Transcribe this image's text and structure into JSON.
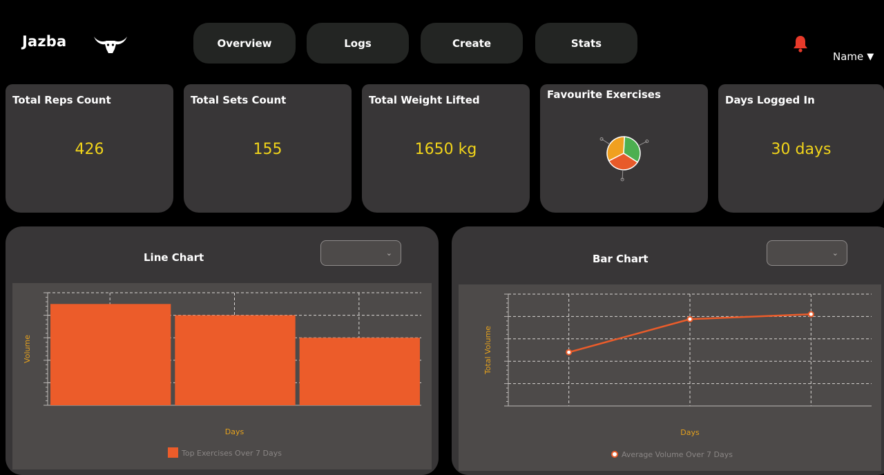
{
  "header": {
    "brand": "Jazba",
    "nav": [
      "Overview",
      "Logs",
      "Create",
      "Stats"
    ],
    "user_name": "Name",
    "user_caret": "▼"
  },
  "icons": {
    "logo": "bull-skull-icon",
    "notifications": "bell-icon",
    "select_chevron": "chevron-down-icon"
  },
  "colors": {
    "accent_value": "#f2d51a",
    "bar_orange": "#ec5c2a",
    "bell_red": "#e83a2a",
    "axis_label": "#e6a21d"
  },
  "cards": [
    {
      "title": "Total Reps Count",
      "value": "426"
    },
    {
      "title": "Total Sets Count",
      "value": "155"
    },
    {
      "title": "Total Weight Lifted",
      "value": "1650 kg"
    },
    {
      "title": "Favourite Exercises",
      "value": ""
    },
    {
      "title": "Days Logged In",
      "value": "30 days"
    }
  ],
  "panels": {
    "left": {
      "title": "Line Chart",
      "select_value": "",
      "chevron": "⌄"
    },
    "right": {
      "title": "Bar Chart",
      "select_value": "",
      "chevron": "⌄"
    }
  },
  "chart_data": [
    {
      "type": "pie",
      "title": "Favourite Exercises",
      "categories": [
        "",
        "",
        ""
      ],
      "values": [
        1,
        1,
        1
      ],
      "colors": [
        "#4caf50",
        "#e85a2a",
        "#f0a020"
      ]
    },
    {
      "type": "bar",
      "title": "",
      "xlabel": "Days",
      "ylabel": "Volume",
      "categories": [
        "",
        "",
        ""
      ],
      "series": [
        {
          "name": "Top Exercises Over 7 Days",
          "values": [
            9,
            8,
            6
          ]
        }
      ],
      "ylim": [
        0,
        10
      ],
      "grid": true,
      "legend": "bottom"
    },
    {
      "type": "line",
      "title": "",
      "xlabel": "Days",
      "ylabel": "Total Volume",
      "categories": [
        "",
        "",
        ""
      ],
      "series": [
        {
          "name": "Average Volume Over 7 Days",
          "values": [
            1200,
            1940,
            2050
          ]
        }
      ],
      "ylim": [
        0,
        2500
      ],
      "grid": true,
      "legend": "bottom"
    }
  ]
}
